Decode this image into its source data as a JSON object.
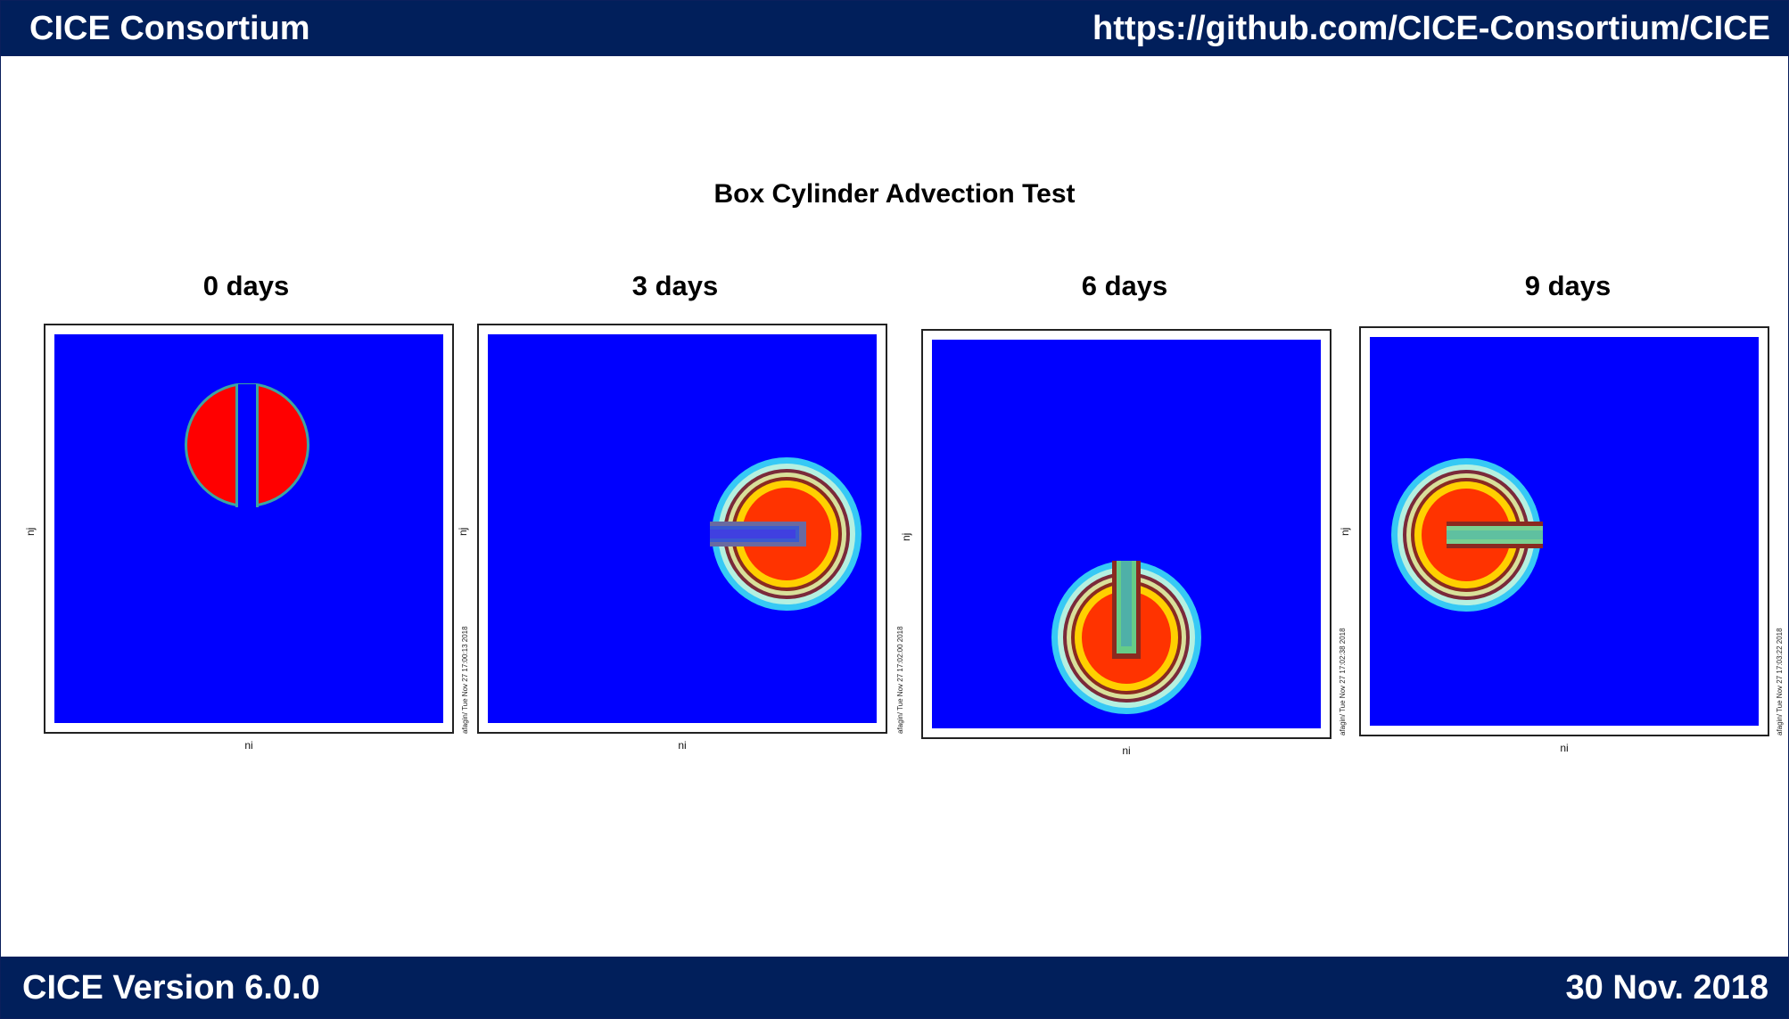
{
  "header": {
    "left": "CICE Consortium",
    "right": "https://github.com/CICE-Consortium/CICE"
  },
  "footer": {
    "left": "CICE Version 6.0.0",
    "right": "30 Nov. 2018"
  },
  "figure": {
    "title": "Box Cylinder Advection Test",
    "panels": [
      {
        "title": "0 days",
        "xlabel": "ni",
        "ylabel": "nj",
        "stamp": ""
      },
      {
        "title": "3 days",
        "xlabel": "ni",
        "ylabel": "nj",
        "stamp": "afagin/ Tue Nov 27 17:00:13 2018"
      },
      {
        "title": "6 days",
        "xlabel": "ni",
        "ylabel": "nj",
        "stamp": "afagin/ Tue Nov 27 17:02:00 2018"
      },
      {
        "title": "9 days",
        "xlabel": "ni",
        "ylabel": "nj",
        "stamp": "afagin/ Tue Nov 27 17:02:38 2018"
      }
    ],
    "extra_stamp": "afagin/ Tue Nov 27 17:03:22 2018",
    "colors": {
      "background_field": "#0000ff",
      "high": "#ff0000",
      "bar": "#011f5b"
    }
  }
}
